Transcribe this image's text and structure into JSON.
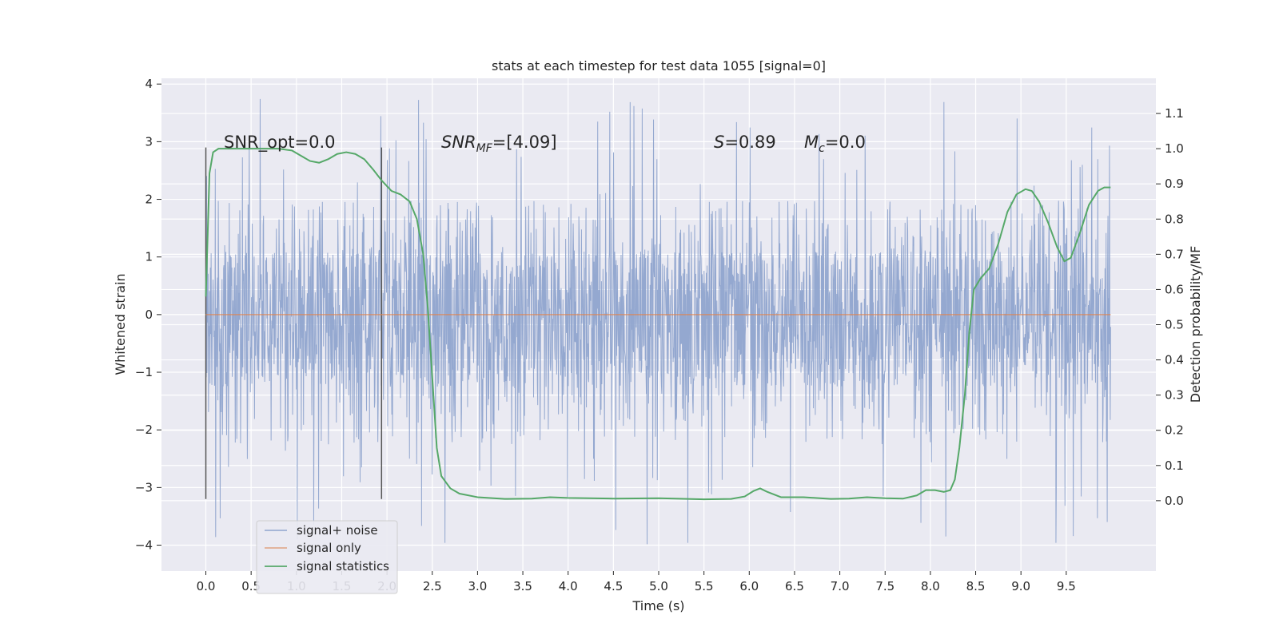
{
  "chart_data": {
    "type": "line",
    "title": "stats at each timestep for test data 1055 [signal=0]",
    "xlabel": "Time (s)",
    "ylabel_left": "Whitened strain",
    "ylabel_right": "Detection probability/MF",
    "xlim": [
      -0.49,
      10.49
    ],
    "ylim_left": [
      -4.45,
      4.1
    ],
    "ylim_right": [
      -0.2,
      1.2
    ],
    "x_ticks": [
      0.0,
      0.5,
      1.0,
      1.5,
      2.0,
      2.5,
      3.0,
      3.5,
      4.0,
      4.5,
      5.0,
      5.5,
      6.0,
      6.5,
      7.0,
      7.5,
      8.0,
      8.5,
      9.0,
      9.5
    ],
    "x_tick_labels": [
      "0.0",
      "0.5",
      "1.0",
      "1.5",
      "2.0",
      "2.5",
      "3.0",
      "3.5",
      "4.0",
      "4.5",
      "5.0",
      "5.5",
      "6.0",
      "6.5",
      "7.0",
      "7.5",
      "8.0",
      "8.5",
      "9.0",
      "9.5"
    ],
    "y_left_ticks": [
      4,
      3,
      2,
      1,
      0,
      -1,
      -2,
      -3,
      -4
    ],
    "y_left_tick_labels": [
      "4",
      "3",
      "2",
      "1",
      "0",
      "−1",
      "−2",
      "−3",
      "−4"
    ],
    "y_right_ticks": [
      1.1,
      1.0,
      0.9,
      0.8,
      0.7,
      0.6,
      0.5,
      0.4,
      0.3,
      0.2,
      0.1,
      0.0
    ],
    "y_right_tick_labels": [
      "1.1",
      "1.0",
      "0.9",
      "0.8",
      "0.7",
      "0.6",
      "0.5",
      "0.4",
      "0.3",
      "0.2",
      "0.1",
      "0.0"
    ],
    "grid": true,
    "legend_position": "bottom-left",
    "annotations": {
      "snr_opt": "SNR_opt=0.0",
      "snr_mf_main": "SNR",
      "snr_mf_sub": "MF",
      "snr_mf_rest": "=[4.09]",
      "s_sym": "S",
      "s_rest": "=0.89",
      "mc_sym": "M",
      "mc_sub": "c",
      "mc_rest": "=0.0"
    },
    "vertical_markers": [
      {
        "x": 0.0,
        "y_range": [
          -3.2,
          2.9
        ]
      },
      {
        "x": 1.94,
        "y_range": [
          -3.2,
          2.9
        ]
      }
    ],
    "series": [
      {
        "name": "signal+ noise",
        "axis": "left",
        "color": "#8FA4CE",
        "style": "dense noise",
        "x_range": [
          0.0,
          9.99
        ],
        "envelope": {
          "dense_band": [
            -1.25,
            1.1
          ],
          "occasional_peaks": [
            -4.05,
            3.75
          ]
        }
      },
      {
        "name": "signal only",
        "axis": "left",
        "color": "#DD8452",
        "x": [
          0.0,
          9.99
        ],
        "y": [
          0.0,
          0.0
        ]
      },
      {
        "name": "signal statistics",
        "axis": "right",
        "color": "#55A868",
        "x": [
          0.0,
          0.04,
          0.08,
          0.14,
          0.25,
          0.4,
          0.6,
          0.8,
          0.95,
          1.05,
          1.15,
          1.25,
          1.35,
          1.45,
          1.55,
          1.65,
          1.75,
          1.85,
          1.94,
          2.05,
          2.15,
          2.25,
          2.33,
          2.4,
          2.45,
          2.5,
          2.55,
          2.6,
          2.7,
          2.8,
          3.0,
          3.3,
          3.6,
          3.8,
          4.0,
          4.5,
          5.0,
          5.5,
          5.8,
          5.95,
          6.05,
          6.12,
          6.2,
          6.35,
          6.6,
          6.9,
          7.1,
          7.3,
          7.5,
          7.7,
          7.85,
          7.95,
          8.05,
          8.15,
          8.22,
          8.27,
          8.32,
          8.38,
          8.43,
          8.48,
          8.55,
          8.65,
          8.75,
          8.85,
          8.95,
          9.05,
          9.12,
          9.2,
          9.3,
          9.4,
          9.48,
          9.55,
          9.65,
          9.75,
          9.85,
          9.92,
          9.99
        ],
        "y": [
          0.58,
          0.93,
          0.99,
          1.0,
          1.0,
          1.0,
          1.0,
          1.0,
          0.995,
          0.98,
          0.965,
          0.96,
          0.97,
          0.985,
          0.99,
          0.985,
          0.97,
          0.94,
          0.91,
          0.88,
          0.87,
          0.85,
          0.8,
          0.7,
          0.55,
          0.35,
          0.15,
          0.07,
          0.035,
          0.02,
          0.01,
          0.005,
          0.006,
          0.01,
          0.008,
          0.006,
          0.007,
          0.004,
          0.005,
          0.012,
          0.028,
          0.035,
          0.025,
          0.01,
          0.01,
          0.005,
          0.006,
          0.01,
          0.007,
          0.006,
          0.015,
          0.03,
          0.03,
          0.025,
          0.03,
          0.06,
          0.15,
          0.3,
          0.48,
          0.6,
          0.63,
          0.66,
          0.73,
          0.82,
          0.87,
          0.885,
          0.88,
          0.85,
          0.79,
          0.72,
          0.68,
          0.69,
          0.76,
          0.84,
          0.88,
          0.89,
          0.89
        ]
      }
    ]
  }
}
